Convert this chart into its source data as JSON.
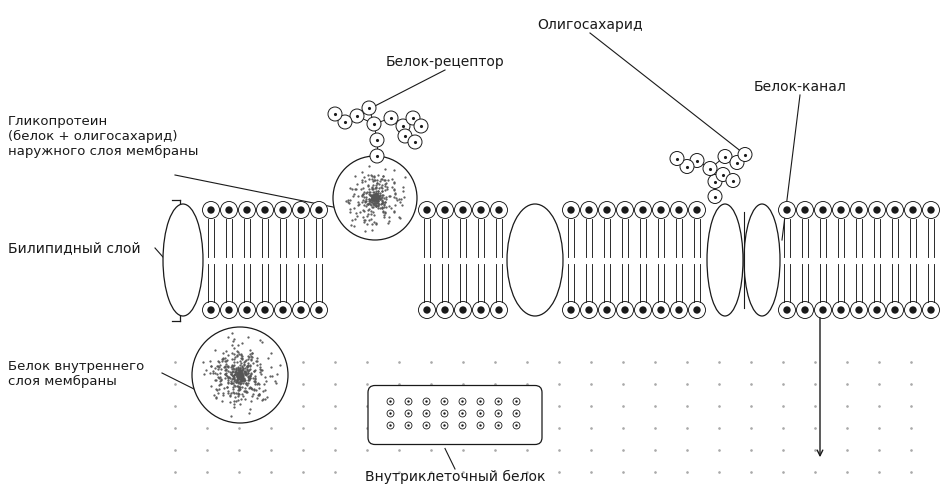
{
  "bg_color": "#ffffff",
  "line_color": "#1a1a1a",
  "labels": {
    "oligosaccharid": "Олигосахарид",
    "receptor": "Белок-рецептор",
    "channel": "Белок-канал",
    "glycoprotein": "Гликопротеин\n(белок + олигосахарид)\nнаружного слоя мембраны",
    "bilipid": "Билипидный слой",
    "inner_protein": "Белок внутреннего\nслоя мембраны",
    "intracellular": "Внутриклеточный белок"
  },
  "font_size": 9.5
}
